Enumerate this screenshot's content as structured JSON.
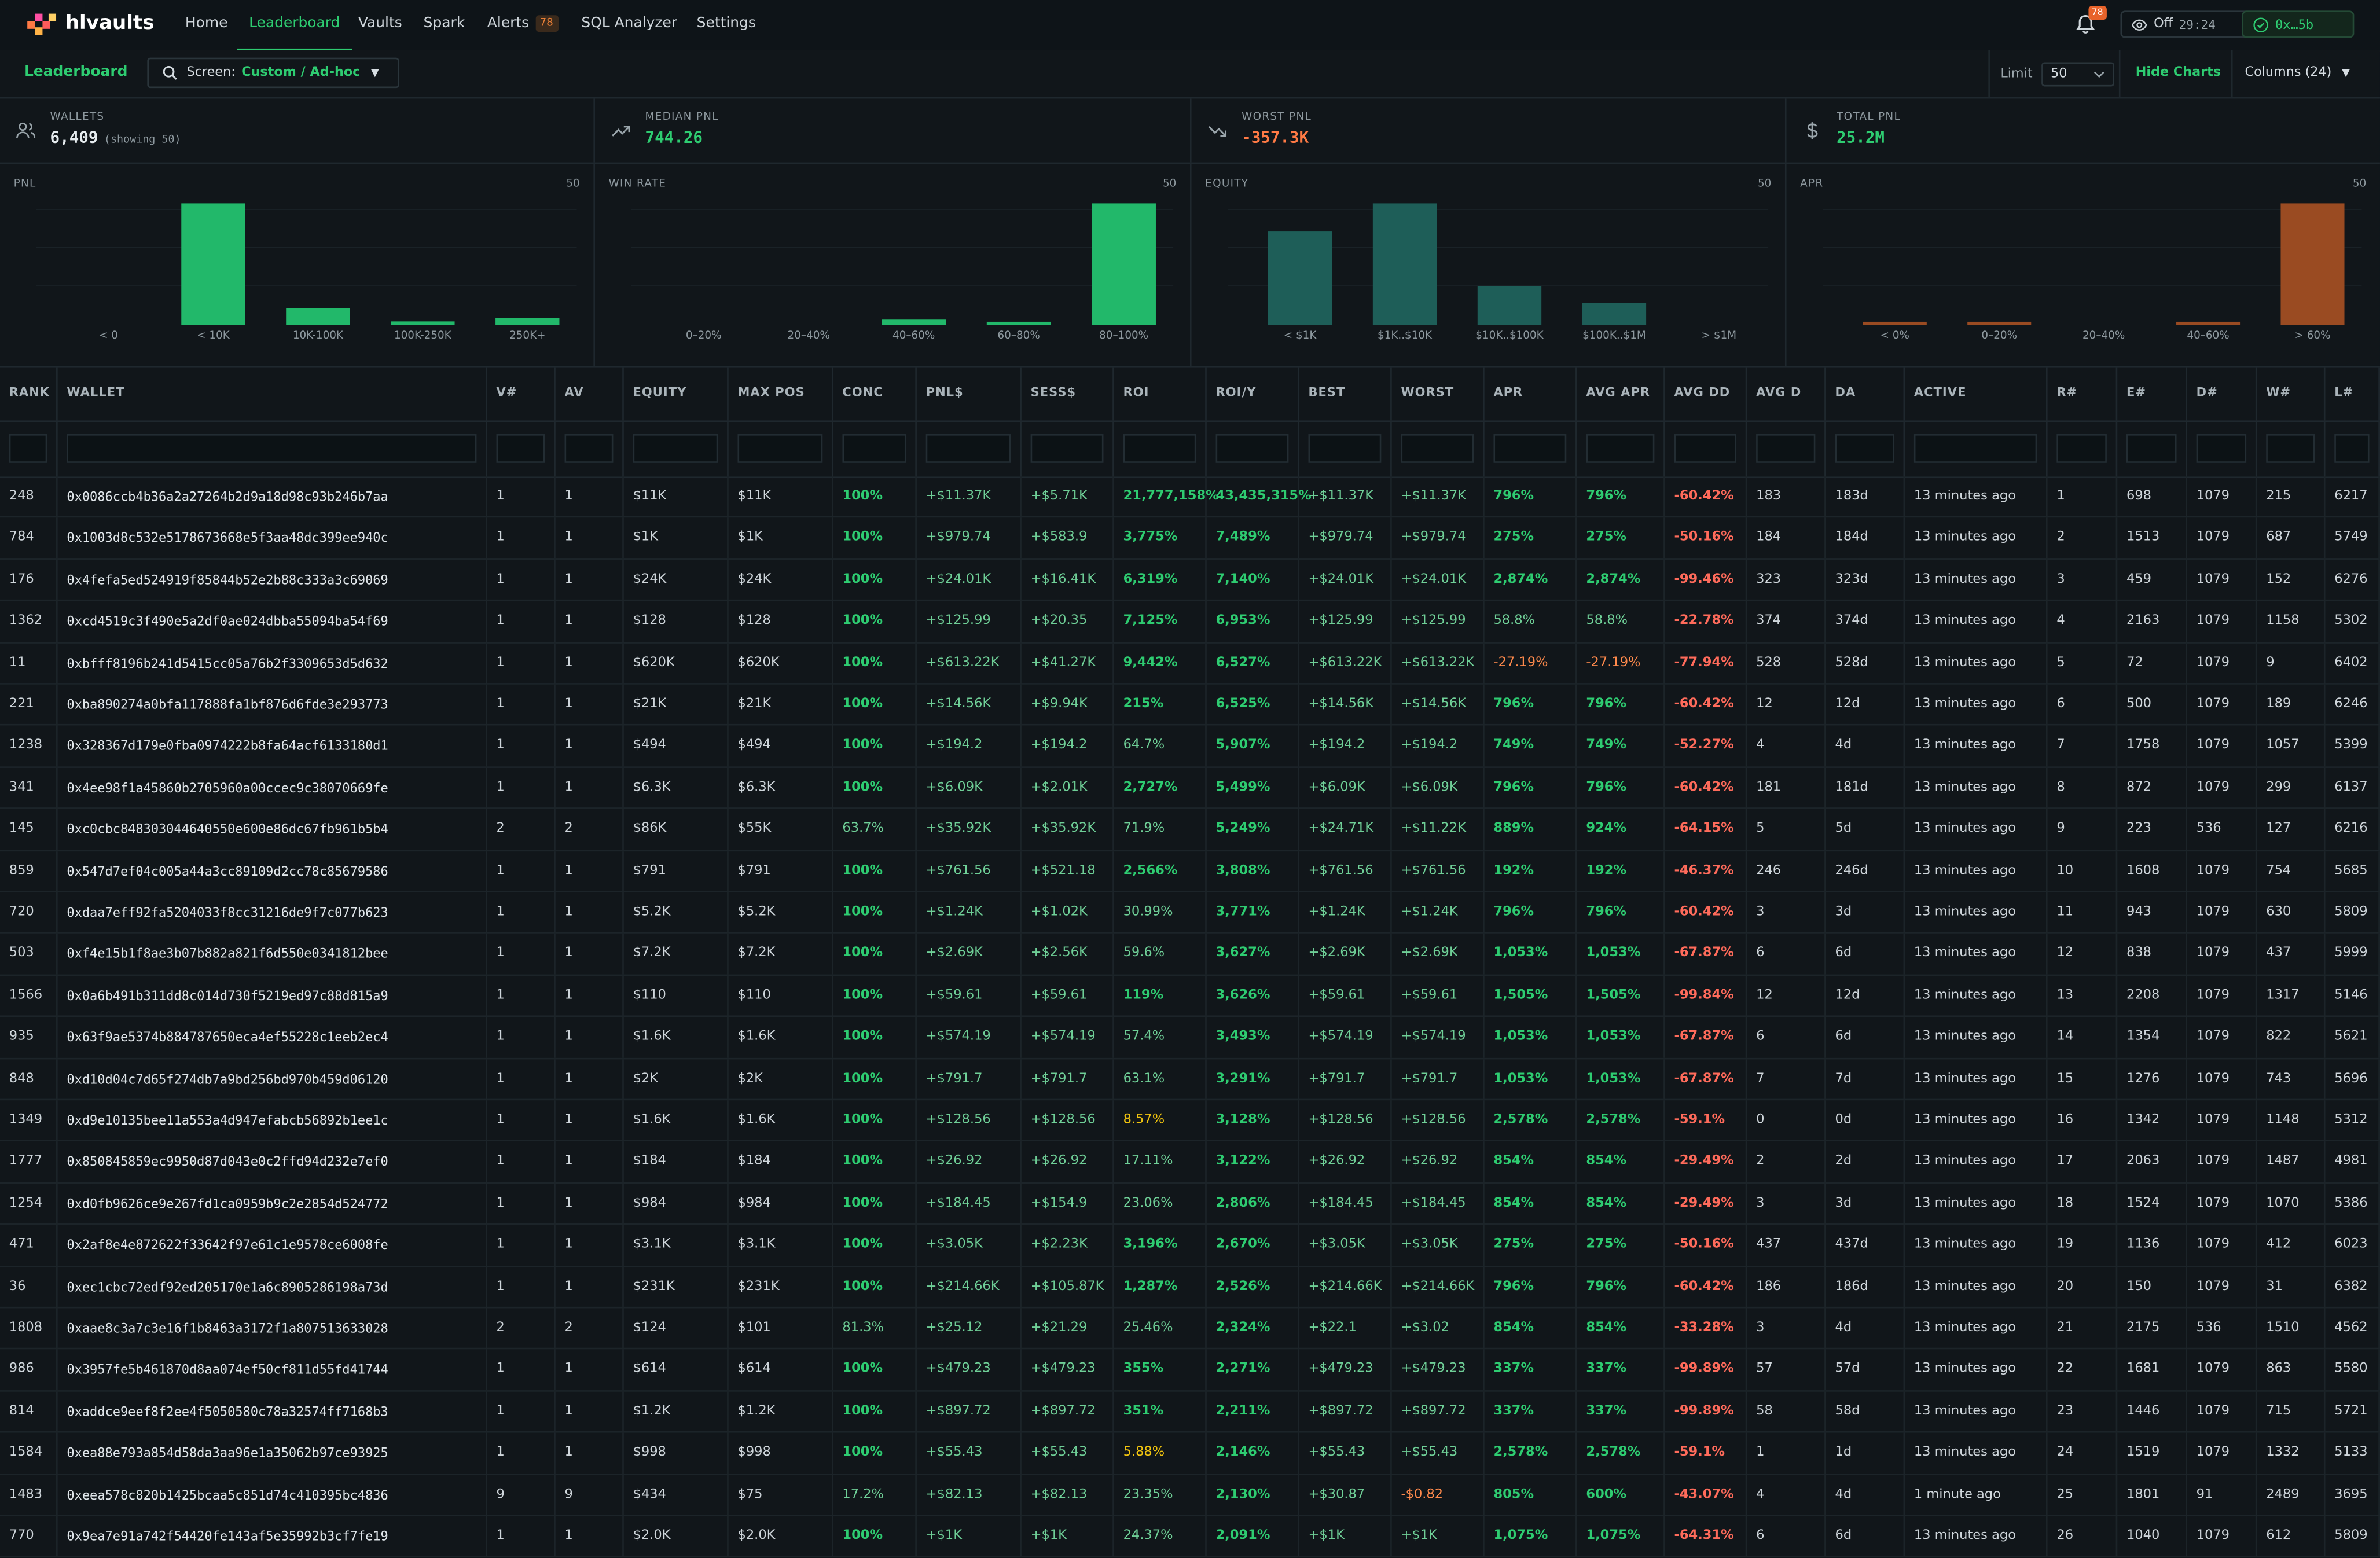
{
  "app": {
    "name": "hlvaults"
  },
  "nav": {
    "items": [
      "Home",
      "Leaderboard",
      "Vaults",
      "Spark",
      "Alerts",
      "SQL Analyzer",
      "Settings"
    ],
    "active": "Leaderboard",
    "alerts_badge": "78"
  },
  "topright": {
    "bell_badge": "78",
    "watch_label": "Off",
    "watch_time": "29:24",
    "wallet": "0x…5b"
  },
  "subbar": {
    "title": "Leaderboard",
    "screen_label": "Screen:",
    "screen_value": "Custom / Ad-hoc",
    "limit_label": "Limit",
    "limit_value": "50",
    "hide_charts": "Hide Charts",
    "columns": "Columns (24)"
  },
  "stats": [
    {
      "label": "WALLETS",
      "value": "6,409",
      "note": "(showing 50)",
      "tone": "white",
      "icon": "users-icon"
    },
    {
      "label": "MEDIAN PNL",
      "value": "744.26",
      "note": "",
      "tone": "green",
      "icon": "trend-up-icon"
    },
    {
      "label": "WORST PNL",
      "value": "-357.3K",
      "note": "",
      "tone": "red",
      "icon": "trend-down-icon"
    },
    {
      "label": "TOTAL PNL",
      "value": "25.2M",
      "note": "",
      "tone": "green",
      "icon": "dollar-icon"
    }
  ],
  "chart_data": [
    {
      "type": "bar",
      "title": "PNL",
      "count": "50",
      "color": "#22b86a",
      "categories": [
        "< 0",
        "< 10K",
        "10K-100K",
        "100K-250K",
        "250K+"
      ],
      "values": [
        0,
        36,
        5,
        1,
        2
      ]
    },
    {
      "type": "bar",
      "title": "WIN RATE",
      "count": "50",
      "color": "#22b86a",
      "categories": [
        "0–20%",
        "20–40%",
        "40–60%",
        "60–80%",
        "80–100%"
      ],
      "values": [
        0,
        0,
        2,
        1,
        47
      ]
    },
    {
      "type": "bar",
      "title": "EQUITY",
      "count": "50",
      "color": "#1e5e58",
      "categories": [
        "< $1K",
        "$1K..$10K",
        "$10K..$100K",
        "$100K..$1M",
        "> $1M"
      ],
      "values": [
        17,
        22,
        7,
        4,
        0
      ]
    },
    {
      "type": "bar",
      "title": "APR",
      "count": "50",
      "color": "#9a4b22",
      "categories": [
        "< 0%",
        "0–20%",
        "20–40%",
        "40–60%",
        "> 60%"
      ],
      "values": [
        1,
        1,
        0,
        1,
        47
      ]
    }
  ],
  "table": {
    "columns": [
      "RANK",
      "WALLET",
      "V#",
      "AV",
      "EQUITY",
      "MAX POS",
      "CONC",
      "PNL$",
      "SESS$",
      "ROI",
      "ROI/Y",
      "BEST",
      "WORST",
      "APR",
      "AVG APR",
      "AVG DD",
      "AVG D",
      "DA",
      "ACTIVE",
      "R#",
      "E#",
      "D#",
      "W#",
      "L#"
    ],
    "rows": [
      [
        "248",
        "0x0086ccb4b36a2a27264b2d9a18d98c93b246b7aa",
        "1",
        "1",
        "$11K",
        "$11K",
        "100%",
        "+$11.37K",
        "+$5.71K",
        "21,777,158%",
        "43,435,315%",
        "+$11.37K",
        "+$11.37K",
        "796%",
        "796%",
        "-60.42%",
        "183",
        "183d",
        "13 minutes ago",
        "1",
        "698",
        "1079",
        "215",
        "6217"
      ],
      [
        "784",
        "0x1003d8c532e5178673668e5f3aa48dc399ee940c",
        "1",
        "1",
        "$1K",
        "$1K",
        "100%",
        "+$979.74",
        "+$583.9",
        "3,775%",
        "7,489%",
        "+$979.74",
        "+$979.74",
        "275%",
        "275%",
        "-50.16%",
        "184",
        "184d",
        "13 minutes ago",
        "2",
        "1513",
        "1079",
        "687",
        "5749"
      ],
      [
        "176",
        "0x4fefa5ed524919f85844b52e2b88c333a3c69069",
        "1",
        "1",
        "$24K",
        "$24K",
        "100%",
        "+$24.01K",
        "+$16.41K",
        "6,319%",
        "7,140%",
        "+$24.01K",
        "+$24.01K",
        "2,874%",
        "2,874%",
        "-99.46%",
        "323",
        "323d",
        "13 minutes ago",
        "3",
        "459",
        "1079",
        "152",
        "6276"
      ],
      [
        "1362",
        "0xcd4519c3f490e5a2df0ae024dbba55094ba54f69",
        "1",
        "1",
        "$128",
        "$128",
        "100%",
        "+$125.99",
        "+$20.35",
        "7,125%",
        "6,953%",
        "+$125.99",
        "+$125.99",
        "58.8%",
        "58.8%",
        "-22.78%",
        "374",
        "374d",
        "13 minutes ago",
        "4",
        "2163",
        "1079",
        "1158",
        "5302"
      ],
      [
        "11",
        "0xbfff8196b241d5415cc05a76b2f3309653d5d632",
        "1",
        "1",
        "$620K",
        "$620K",
        "100%",
        "+$613.22K",
        "+$41.27K",
        "9,442%",
        "6,527%",
        "+$613.22K",
        "+$613.22K",
        "-27.19%",
        "-27.19%",
        "-77.94%",
        "528",
        "528d",
        "13 minutes ago",
        "5",
        "72",
        "1079",
        "9",
        "6402"
      ],
      [
        "221",
        "0xba890274a0bfa117888fa1bf876d6fde3e293773",
        "1",
        "1",
        "$21K",
        "$21K",
        "100%",
        "+$14.56K",
        "+$9.94K",
        "215%",
        "6,525%",
        "+$14.56K",
        "+$14.56K",
        "796%",
        "796%",
        "-60.42%",
        "12",
        "12d",
        "13 minutes ago",
        "6",
        "500",
        "1079",
        "189",
        "6246"
      ],
      [
        "1238",
        "0x328367d179e0fba0974222b8fa64acf6133180d1",
        "1",
        "1",
        "$494",
        "$494",
        "100%",
        "+$194.2",
        "+$194.2",
        "64.7%",
        "5,907%",
        "+$194.2",
        "+$194.2",
        "749%",
        "749%",
        "-52.27%",
        "4",
        "4d",
        "13 minutes ago",
        "7",
        "1758",
        "1079",
        "1057",
        "5399"
      ],
      [
        "341",
        "0x4ee98f1a45860b2705960a00ccec9c38070669fe",
        "1",
        "1",
        "$6.3K",
        "$6.3K",
        "100%",
        "+$6.09K",
        "+$2.01K",
        "2,727%",
        "5,499%",
        "+$6.09K",
        "+$6.09K",
        "796%",
        "796%",
        "-60.42%",
        "181",
        "181d",
        "13 minutes ago",
        "8",
        "872",
        "1079",
        "299",
        "6137"
      ],
      [
        "145",
        "0xc0cbc848303044640550e600e86dc67fb961b5b4",
        "2",
        "2",
        "$86K",
        "$55K",
        "63.7%",
        "+$35.92K",
        "+$35.92K",
        "71.9%",
        "5,249%",
        "+$24.71K",
        "+$11.22K",
        "889%",
        "924%",
        "-64.15%",
        "5",
        "5d",
        "13 minutes ago",
        "9",
        "223",
        "536",
        "127",
        "6216"
      ],
      [
        "859",
        "0x547d7ef04c005a44a3cc89109d2cc78c85679586",
        "1",
        "1",
        "$791",
        "$791",
        "100%",
        "+$761.56",
        "+$521.18",
        "2,566%",
        "3,808%",
        "+$761.56",
        "+$761.56",
        "192%",
        "192%",
        "-46.37%",
        "246",
        "246d",
        "13 minutes ago",
        "10",
        "1608",
        "1079",
        "754",
        "5685"
      ],
      [
        "720",
        "0xdaa7eff92fa5204033f8cc31216de9f7c077b623",
        "1",
        "1",
        "$5.2K",
        "$5.2K",
        "100%",
        "+$1.24K",
        "+$1.02K",
        "30.99%",
        "3,771%",
        "+$1.24K",
        "+$1.24K",
        "796%",
        "796%",
        "-60.42%",
        "3",
        "3d",
        "13 minutes ago",
        "11",
        "943",
        "1079",
        "630",
        "5809"
      ],
      [
        "503",
        "0xf4e15b1f8ae3b07b882a821f6d550e0341812bee",
        "1",
        "1",
        "$7.2K",
        "$7.2K",
        "100%",
        "+$2.69K",
        "+$2.56K",
        "59.6%",
        "3,627%",
        "+$2.69K",
        "+$2.69K",
        "1,053%",
        "1,053%",
        "-67.87%",
        "6",
        "6d",
        "13 minutes ago",
        "12",
        "838",
        "1079",
        "437",
        "5999"
      ],
      [
        "1566",
        "0x0a6b491b311dd8c014d730f5219ed97c88d815a9",
        "1",
        "1",
        "$110",
        "$110",
        "100%",
        "+$59.61",
        "+$59.61",
        "119%",
        "3,626%",
        "+$59.61",
        "+$59.61",
        "1,505%",
        "1,505%",
        "-99.84%",
        "12",
        "12d",
        "13 minutes ago",
        "13",
        "2208",
        "1079",
        "1317",
        "5146"
      ],
      [
        "935",
        "0x63f9ae5374b884787650eca4ef55228c1eeb2ec4",
        "1",
        "1",
        "$1.6K",
        "$1.6K",
        "100%",
        "+$574.19",
        "+$574.19",
        "57.4%",
        "3,493%",
        "+$574.19",
        "+$574.19",
        "1,053%",
        "1,053%",
        "-67.87%",
        "6",
        "6d",
        "13 minutes ago",
        "14",
        "1354",
        "1079",
        "822",
        "5621"
      ],
      [
        "848",
        "0xd10d04c7d65f274db7a9bd256bd970b459d06120",
        "1",
        "1",
        "$2K",
        "$2K",
        "100%",
        "+$791.7",
        "+$791.7",
        "63.1%",
        "3,291%",
        "+$791.7",
        "+$791.7",
        "1,053%",
        "1,053%",
        "-67.87%",
        "7",
        "7d",
        "13 minutes ago",
        "15",
        "1276",
        "1079",
        "743",
        "5696"
      ],
      [
        "1349",
        "0xd9e10135bee11a553a4d947efabcb56892b1ee1c",
        "1",
        "1",
        "$1.6K",
        "$1.6K",
        "100%",
        "+$128.56",
        "+$128.56",
        "8.57%",
        "3,128%",
        "+$128.56",
        "+$128.56",
        "2,578%",
        "2,578%",
        "-59.1%",
        "0",
        "0d",
        "13 minutes ago",
        "16",
        "1342",
        "1079",
        "1148",
        "5312"
      ],
      [
        "1777",
        "0x850845859ec9950d87d043e0c2ffd94d232e7ef0",
        "1",
        "1",
        "$184",
        "$184",
        "100%",
        "+$26.92",
        "+$26.92",
        "17.11%",
        "3,122%",
        "+$26.92",
        "+$26.92",
        "854%",
        "854%",
        "-29.49%",
        "2",
        "2d",
        "13 minutes ago",
        "17",
        "2063",
        "1079",
        "1487",
        "4981"
      ],
      [
        "1254",
        "0xd0fb9626ce9e267fd1ca0959b9c2e2854d524772",
        "1",
        "1",
        "$984",
        "$984",
        "100%",
        "+$184.45",
        "+$154.9",
        "23.06%",
        "2,806%",
        "+$184.45",
        "+$184.45",
        "854%",
        "854%",
        "-29.49%",
        "3",
        "3d",
        "13 minutes ago",
        "18",
        "1524",
        "1079",
        "1070",
        "5386"
      ],
      [
        "471",
        "0x2af8e4e872622f33642f97e61c1e9578ce6008fe",
        "1",
        "1",
        "$3.1K",
        "$3.1K",
        "100%",
        "+$3.05K",
        "+$2.23K",
        "3,196%",
        "2,670%",
        "+$3.05K",
        "+$3.05K",
        "275%",
        "275%",
        "-50.16%",
        "437",
        "437d",
        "13 minutes ago",
        "19",
        "1136",
        "1079",
        "412",
        "6023"
      ],
      [
        "36",
        "0xec1cbc72edf92ed205170e1a6c8905286198a73d",
        "1",
        "1",
        "$231K",
        "$231K",
        "100%",
        "+$214.66K",
        "+$105.87K",
        "1,287%",
        "2,526%",
        "+$214.66K",
        "+$214.66K",
        "796%",
        "796%",
        "-60.42%",
        "186",
        "186d",
        "13 minutes ago",
        "20",
        "150",
        "1079",
        "31",
        "6382"
      ],
      [
        "1808",
        "0xaae8c3a7c3e16f1b8463a3172f1a807513633028",
        "2",
        "2",
        "$124",
        "$101",
        "81.3%",
        "+$25.12",
        "+$21.29",
        "25.46%",
        "2,324%",
        "+$22.1",
        "+$3.02",
        "854%",
        "854%",
        "-33.28%",
        "3",
        "4d",
        "13 minutes ago",
        "21",
        "2175",
        "536",
        "1510",
        "4562"
      ],
      [
        "986",
        "0x3957fe5b461870d8aa074ef50cf811d55fd41744",
        "1",
        "1",
        "$614",
        "$614",
        "100%",
        "+$479.23",
        "+$479.23",
        "355%",
        "2,271%",
        "+$479.23",
        "+$479.23",
        "337%",
        "337%",
        "-99.89%",
        "57",
        "57d",
        "13 minutes ago",
        "22",
        "1681",
        "1079",
        "863",
        "5580"
      ],
      [
        "814",
        "0xaddce9eef8f2ee4f5050580c78a32574ff7168b3",
        "1",
        "1",
        "$1.2K",
        "$1.2K",
        "100%",
        "+$897.72",
        "+$897.72",
        "351%",
        "2,211%",
        "+$897.72",
        "+$897.72",
        "337%",
        "337%",
        "-99.89%",
        "58",
        "58d",
        "13 minutes ago",
        "23",
        "1446",
        "1079",
        "715",
        "5721"
      ],
      [
        "1584",
        "0xea88e793a854d58da3aa96e1a35062b97ce93925",
        "1",
        "1",
        "$998",
        "$998",
        "100%",
        "+$55.43",
        "+$55.43",
        "5.88%",
        "2,146%",
        "+$55.43",
        "+$55.43",
        "2,578%",
        "2,578%",
        "-59.1%",
        "1",
        "1d",
        "13 minutes ago",
        "24",
        "1519",
        "1079",
        "1332",
        "5133"
      ],
      [
        "1483",
        "0xeea578c820b1425bcaa5c851d74c410395bc4836",
        "9",
        "9",
        "$434",
        "$75",
        "17.2%",
        "+$82.13",
        "+$82.13",
        "23.35%",
        "2,130%",
        "+$30.87",
        "-$0.82",
        "805%",
        "600%",
        "-43.07%",
        "4",
        "4d",
        "1 minute ago",
        "25",
        "1801",
        "91",
        "2489",
        "3695"
      ],
      [
        "770",
        "0x9ea7e91a742f54420fe143af5e35992b3cf7fe19",
        "1",
        "1",
        "$2.0K",
        "$2.0K",
        "100%",
        "+$1K",
        "+$1K",
        "24.37%",
        "2,091%",
        "+$1K",
        "+$1K",
        "1,075%",
        "1,075%",
        "-64.31%",
        "6",
        "6d",
        "13 minutes ago",
        "26",
        "1040",
        "1079",
        "612",
        "5809"
      ]
    ]
  }
}
